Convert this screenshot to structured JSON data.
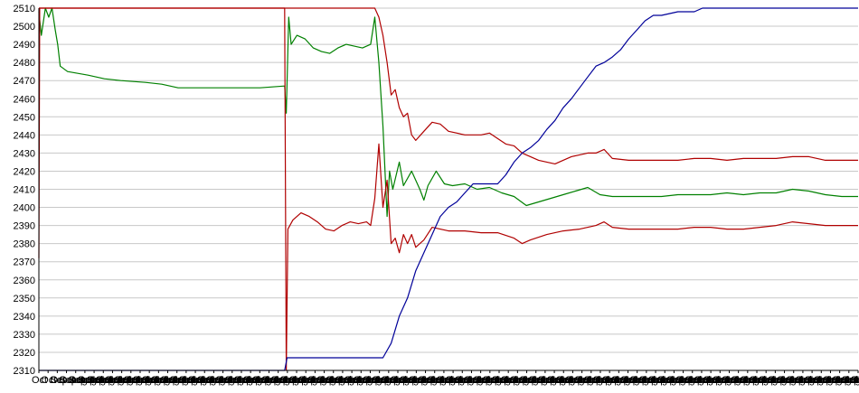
{
  "chart_data": {
    "type": "line",
    "title": "",
    "xlabel": "",
    "ylabel": "",
    "ylim": [
      2310,
      2510
    ],
    "y_ticks": [
      2310,
      2320,
      2330,
      2340,
      2350,
      2360,
      2370,
      2380,
      2390,
      2400,
      2410,
      2420,
      2430,
      2440,
      2450,
      2460,
      2470,
      2480,
      2490,
      2500,
      2510
    ],
    "x_tick_label": "Oct Sep Aug Jul",
    "x_tick_count": 90,
    "xlim": [
      0,
      100
    ],
    "grid": {
      "horizontal": true,
      "vertical": false
    },
    "legend": "none",
    "series": [
      {
        "color": "#008000",
        "points": [
          [
            0,
            2508
          ],
          [
            0.3,
            2495
          ],
          [
            0.8,
            2510
          ],
          [
            1.2,
            2505
          ],
          [
            1.6,
            2510
          ],
          [
            2,
            2498
          ],
          [
            2.3,
            2490
          ],
          [
            2.6,
            2478
          ],
          [
            3.5,
            2475
          ],
          [
            6,
            2473
          ],
          [
            8,
            2471
          ],
          [
            10,
            2470
          ],
          [
            13,
            2469
          ],
          [
            15,
            2468
          ],
          [
            17,
            2466
          ],
          [
            19,
            2466
          ],
          [
            21,
            2466
          ],
          [
            24,
            2466
          ],
          [
            27,
            2466
          ],
          [
            30,
            2467
          ],
          [
            30.2,
            2452
          ],
          [
            30.5,
            2505
          ],
          [
            30.8,
            2490
          ],
          [
            31.5,
            2495
          ],
          [
            32.5,
            2493
          ],
          [
            33.5,
            2488
          ],
          [
            34.5,
            2486
          ],
          [
            35.5,
            2485
          ],
          [
            36.5,
            2488
          ],
          [
            37.5,
            2490
          ],
          [
            38.5,
            2489
          ],
          [
            39.5,
            2488
          ],
          [
            40.5,
            2490
          ],
          [
            41,
            2505
          ],
          [
            41.5,
            2480
          ],
          [
            42,
            2445
          ],
          [
            42.5,
            2395
          ],
          [
            42.8,
            2420
          ],
          [
            43.2,
            2410
          ],
          [
            44,
            2425
          ],
          [
            44.5,
            2412
          ],
          [
            45.5,
            2420
          ],
          [
            46.5,
            2410
          ],
          [
            47,
            2404
          ],
          [
            47.5,
            2412
          ],
          [
            48.5,
            2420
          ],
          [
            49.5,
            2413
          ],
          [
            50.5,
            2412
          ],
          [
            52,
            2413
          ],
          [
            53.5,
            2410
          ],
          [
            55,
            2411
          ],
          [
            56.5,
            2408
          ],
          [
            58,
            2406
          ],
          [
            59.5,
            2401
          ],
          [
            61,
            2403
          ],
          [
            62.5,
            2405
          ],
          [
            64,
            2407
          ],
          [
            65.5,
            2409
          ],
          [
            67,
            2411
          ],
          [
            68.5,
            2407
          ],
          [
            70,
            2406
          ],
          [
            72,
            2406
          ],
          [
            74,
            2406
          ],
          [
            76,
            2406
          ],
          [
            78,
            2407
          ],
          [
            80,
            2407
          ],
          [
            82,
            2407
          ],
          [
            84,
            2408
          ],
          [
            86,
            2407
          ],
          [
            88,
            2408
          ],
          [
            90,
            2408
          ],
          [
            92,
            2410
          ],
          [
            94,
            2409
          ],
          [
            96,
            2407
          ],
          [
            98,
            2406
          ],
          [
            100,
            2406
          ]
        ]
      },
      {
        "color": "#b00000",
        "points": [
          [
            0,
            2372
          ],
          [
            0.1,
            2510
          ],
          [
            10,
            2510
          ],
          [
            20,
            2510
          ],
          [
            30,
            2510
          ],
          [
            30.2,
            2310
          ],
          [
            30.4,
            2388
          ],
          [
            31,
            2393
          ],
          [
            32,
            2397
          ],
          [
            33,
            2395
          ],
          [
            34,
            2392
          ],
          [
            35,
            2388
          ],
          [
            36,
            2387
          ],
          [
            37,
            2390
          ],
          [
            38,
            2392
          ],
          [
            39,
            2391
          ],
          [
            40,
            2392
          ],
          [
            40.5,
            2390
          ],
          [
            41,
            2405
          ],
          [
            41.5,
            2435
          ],
          [
            42,
            2400
          ],
          [
            42.5,
            2415
          ],
          [
            43,
            2380
          ],
          [
            43.5,
            2383
          ],
          [
            44,
            2375
          ],
          [
            44.5,
            2385
          ],
          [
            45,
            2380
          ],
          [
            45.5,
            2385
          ],
          [
            46,
            2378
          ],
          [
            47,
            2382
          ],
          [
            48,
            2389
          ],
          [
            49,
            2388
          ],
          [
            50,
            2387
          ],
          [
            52,
            2387
          ],
          [
            54,
            2386
          ],
          [
            56,
            2386
          ],
          [
            58,
            2383
          ],
          [
            59,
            2380
          ],
          [
            60,
            2382
          ],
          [
            62,
            2385
          ],
          [
            64,
            2387
          ],
          [
            66,
            2388
          ],
          [
            68,
            2390
          ],
          [
            69,
            2392
          ],
          [
            70,
            2389
          ],
          [
            72,
            2388
          ],
          [
            74,
            2388
          ],
          [
            76,
            2388
          ],
          [
            78,
            2388
          ],
          [
            80,
            2389
          ],
          [
            82,
            2389
          ],
          [
            84,
            2388
          ],
          [
            86,
            2388
          ],
          [
            88,
            2389
          ],
          [
            90,
            2390
          ],
          [
            92,
            2392
          ],
          [
            94,
            2391
          ],
          [
            96,
            2390
          ],
          [
            98,
            2390
          ],
          [
            100,
            2390
          ]
        ]
      },
      {
        "color": "#b00000",
        "points": [
          [
            0,
            2510
          ],
          [
            10,
            2510
          ],
          [
            20,
            2510
          ],
          [
            30,
            2510
          ],
          [
            35,
            2510
          ],
          [
            40,
            2510
          ],
          [
            41,
            2510
          ],
          [
            41.5,
            2505
          ],
          [
            42,
            2495
          ],
          [
            42.5,
            2480
          ],
          [
            43,
            2462
          ],
          [
            43.5,
            2465
          ],
          [
            44,
            2455
          ],
          [
            44.5,
            2450
          ],
          [
            45,
            2452
          ],
          [
            45.5,
            2440
          ],
          [
            46,
            2437
          ],
          [
            47,
            2442
          ],
          [
            48,
            2447
          ],
          [
            49,
            2446
          ],
          [
            50,
            2442
          ],
          [
            52,
            2440
          ],
          [
            54,
            2440
          ],
          [
            55,
            2441
          ],
          [
            56,
            2438
          ],
          [
            57,
            2435
          ],
          [
            58,
            2434
          ],
          [
            59,
            2430
          ],
          [
            60,
            2428
          ],
          [
            61,
            2426
          ],
          [
            62,
            2425
          ],
          [
            63,
            2424
          ],
          [
            64,
            2426
          ],
          [
            65,
            2428
          ],
          [
            66,
            2429
          ],
          [
            67,
            2430
          ],
          [
            68,
            2430
          ],
          [
            69,
            2432
          ],
          [
            70,
            2427
          ],
          [
            72,
            2426
          ],
          [
            74,
            2426
          ],
          [
            76,
            2426
          ],
          [
            78,
            2426
          ],
          [
            80,
            2427
          ],
          [
            82,
            2427
          ],
          [
            84,
            2426
          ],
          [
            86,
            2427
          ],
          [
            88,
            2427
          ],
          [
            90,
            2427
          ],
          [
            92,
            2428
          ],
          [
            94,
            2428
          ],
          [
            96,
            2426
          ],
          [
            98,
            2426
          ],
          [
            100,
            2426
          ]
        ]
      },
      {
        "color": "#000099",
        "points": [
          [
            0,
            2310
          ],
          [
            10,
            2310
          ],
          [
            20,
            2310
          ],
          [
            30,
            2310
          ],
          [
            30.3,
            2317
          ],
          [
            35,
            2317
          ],
          [
            40,
            2317
          ],
          [
            42,
            2317
          ],
          [
            43,
            2325
          ],
          [
            44,
            2340
          ],
          [
            45,
            2350
          ],
          [
            46,
            2365
          ],
          [
            47,
            2375
          ],
          [
            48,
            2385
          ],
          [
            49,
            2395
          ],
          [
            50,
            2400
          ],
          [
            51,
            2403
          ],
          [
            52,
            2408
          ],
          [
            53,
            2413
          ],
          [
            55,
            2413
          ],
          [
            56,
            2413
          ],
          [
            57,
            2418
          ],
          [
            58,
            2425
          ],
          [
            59,
            2430
          ],
          [
            60,
            2433
          ],
          [
            61,
            2437
          ],
          [
            62,
            2443
          ],
          [
            63,
            2448
          ],
          [
            64,
            2455
          ],
          [
            65,
            2460
          ],
          [
            66,
            2466
          ],
          [
            67,
            2472
          ],
          [
            68,
            2478
          ],
          [
            69,
            2480
          ],
          [
            70,
            2483
          ],
          [
            71,
            2487
          ],
          [
            72,
            2493
          ],
          [
            73,
            2498
          ],
          [
            74,
            2503
          ],
          [
            75,
            2506
          ],
          [
            76,
            2506
          ],
          [
            78,
            2508
          ],
          [
            80,
            2508
          ],
          [
            81,
            2510
          ],
          [
            85,
            2510
          ],
          [
            90,
            2510
          ],
          [
            95,
            2510
          ],
          [
            100,
            2510
          ]
        ]
      }
    ]
  }
}
